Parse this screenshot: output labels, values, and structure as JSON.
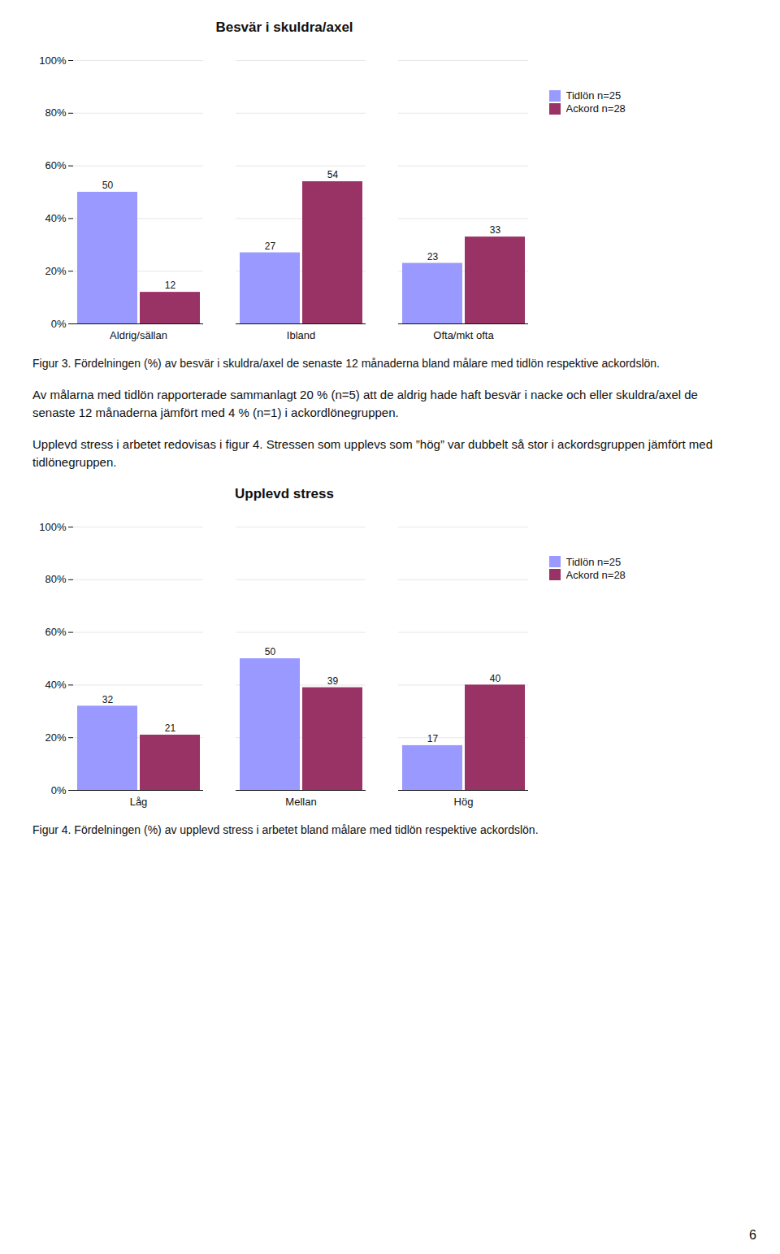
{
  "chart_data": [
    {
      "type": "bar",
      "title": "Besvär i skuldra/axel",
      "categories": [
        "Aldrig/sällan",
        "Ibland",
        "Ofta/mkt ofta"
      ],
      "series": [
        {
          "name": "Tidlön n=25",
          "color": "#9999FF",
          "values": [
            50,
            27,
            23
          ]
        },
        {
          "name": "Ackord n=28",
          "color": "#993366",
          "values": [
            12,
            54,
            33
          ]
        }
      ],
      "ylim": [
        0,
        100
      ],
      "yticks": [
        {
          "value": 0,
          "label": "0%"
        },
        {
          "value": 20,
          "label": "20%"
        },
        {
          "value": 40,
          "label": "40%"
        },
        {
          "value": 60,
          "label": "60%"
        },
        {
          "value": 80,
          "label": "80%"
        },
        {
          "value": 100,
          "label": "100%"
        }
      ],
      "grid": true,
      "legend": "right",
      "data_labels": true,
      "caption": "Figur 3. Fördelningen (%) av besvär i skuldra/axel de senaste 12 månaderna bland målare med tidlön respektive ackordslön."
    },
    {
      "type": "bar",
      "title": "Upplevd stress",
      "categories": [
        "Låg",
        "Mellan",
        "Hög"
      ],
      "series": [
        {
          "name": "Tidlön n=25",
          "color": "#9999FF",
          "values": [
            32,
            50,
            17
          ]
        },
        {
          "name": "Ackord n=28",
          "color": "#993366",
          "values": [
            21,
            39,
            40
          ]
        }
      ],
      "ylim": [
        0,
        100
      ],
      "yticks": [
        {
          "value": 0,
          "label": "0%"
        },
        {
          "value": 20,
          "label": "20%"
        },
        {
          "value": 40,
          "label": "40%"
        },
        {
          "value": 60,
          "label": "60%"
        },
        {
          "value": 80,
          "label": "80%"
        },
        {
          "value": 100,
          "label": "100%"
        }
      ],
      "grid": true,
      "legend": "right",
      "data_labels": true,
      "caption": "Figur 4. Fördelningen (%) av upplevd stress i arbetet bland målare med tidlön respektive ackordslön."
    }
  ],
  "paragraphs": [
    "Av målarna med tidlön rapporterade sammanlagt 20 % (n=5) att de aldrig hade haft besvär i nacke och eller skuldra/axel de senaste 12 månaderna jämfört med 4 % (n=1) i ackordlönegruppen.",
    "Upplevd stress i arbetet redovisas i figur 4. Stressen som upplevs som ”hög” var dubbelt så stor i ackordsgruppen jämfört med tidlönegruppen."
  ],
  "page_number": "6"
}
